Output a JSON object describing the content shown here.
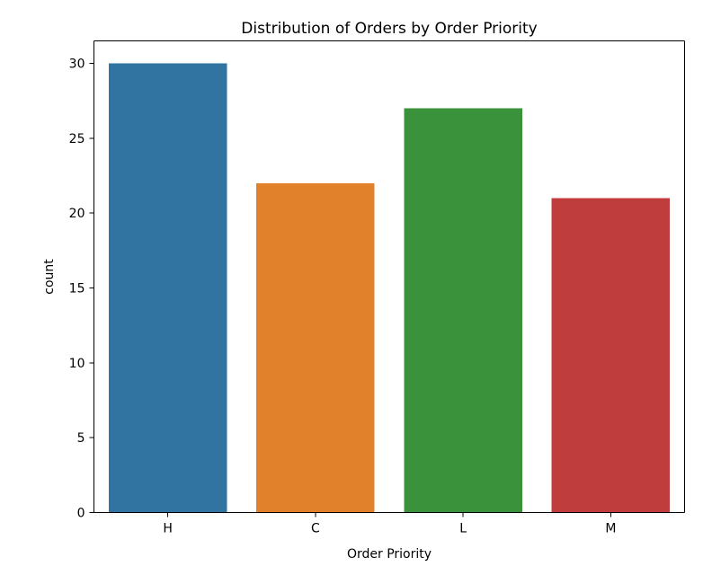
{
  "chart_data": {
    "type": "bar",
    "title": "Distribution of Orders by Order Priority",
    "xlabel": "Order Priority",
    "ylabel": "count",
    "categories": [
      "H",
      "C",
      "L",
      "M"
    ],
    "values": [
      30,
      22,
      27,
      21
    ],
    "colors": [
      "#3274a1",
      "#e1812c",
      "#3a923a",
      "#c03d3e"
    ],
    "ylim": [
      0,
      31.5
    ],
    "yticks": [
      0,
      5,
      10,
      15,
      20,
      25,
      30
    ],
    "grid": false,
    "legend": "none"
  }
}
